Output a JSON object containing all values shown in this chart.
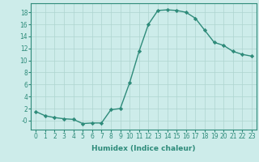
{
  "x": [
    0,
    1,
    2,
    3,
    4,
    5,
    6,
    7,
    8,
    9,
    10,
    11,
    12,
    13,
    14,
    15,
    16,
    17,
    18,
    19,
    20,
    21,
    22,
    23
  ],
  "y": [
    1.5,
    0.8,
    0.5,
    0.3,
    0.2,
    -0.5,
    -0.4,
    -0.4,
    1.8,
    2.0,
    6.3,
    11.5,
    16.0,
    18.3,
    18.4,
    18.3,
    18.0,
    17.0,
    15.0,
    13.0,
    12.5,
    11.5,
    11.0,
    10.7
  ],
  "line_color": "#2e8b7a",
  "marker": "D",
  "markersize": 2.2,
  "linewidth": 1.0,
  "bg_color": "#cdecea",
  "grid_color": "#aed4d0",
  "xlabel": "Humidex (Indice chaleur)",
  "ylim": [
    -1.5,
    19.5
  ],
  "xlim": [
    -0.5,
    23.5
  ],
  "yticks": [
    0,
    2,
    4,
    6,
    8,
    10,
    12,
    14,
    16,
    18
  ],
  "ytick_labels": [
    "-0",
    "2",
    "4",
    "6",
    "8",
    "10",
    "12",
    "14",
    "16",
    "18"
  ],
  "xticks": [
    0,
    1,
    2,
    3,
    4,
    5,
    6,
    7,
    8,
    9,
    10,
    11,
    12,
    13,
    14,
    15,
    16,
    17,
    18,
    19,
    20,
    21,
    22,
    23
  ],
  "xlabel_fontsize": 6.5,
  "tick_fontsize": 5.5
}
